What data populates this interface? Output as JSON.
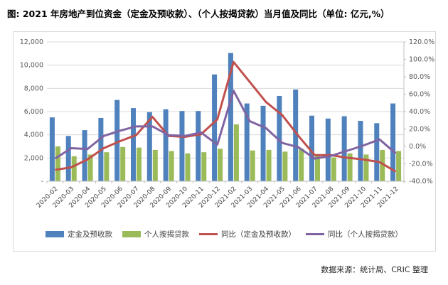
{
  "title": "图: 2021 年房地产到位资金（定金及预收款）、（个人按揭贷款）当月值及同比（单位: 亿元,%）",
  "footer": "数据来源：统计局、CRIC 整理",
  "colors": {
    "bar_blue": "#4f81bd",
    "bar_green": "#9bbb59",
    "line_red": "#c0504d",
    "line_purple": "#8064a2",
    "gridline": "#d9d9d9",
    "axis_line": "#bfbfbf",
    "tick_label": "#595959",
    "x_label": "#404040"
  },
  "chart_data": {
    "type": "bar",
    "subtype": "combo bar+line, dual axis",
    "categories": [
      "2020-02",
      "2020-03",
      "2020-04",
      "2020-05",
      "2020-06",
      "2020-07",
      "2020-08",
      "2020-09",
      "2020-10",
      "2020-11",
      "2020-12",
      "2021-02",
      "2021-03",
      "2021-04",
      "2021-05",
      "2021-06",
      "2021-07",
      "2021-08",
      "2021-09",
      "2021-10",
      "2021-11",
      "2021-12"
    ],
    "series": [
      {
        "name": "定金及预收款",
        "kind": "bar",
        "axis": "left",
        "color": "#4f81bd",
        "values": [
          5500,
          3900,
          4400,
          5450,
          7000,
          6300,
          5950,
          6200,
          6050,
          6050,
          9200,
          11050,
          6700,
          6500,
          7350,
          7900,
          5650,
          5400,
          5600,
          5200,
          5000,
          6700
        ]
      },
      {
        "name": "个人按揭贷款",
        "kind": "bar",
        "axis": "left",
        "color": "#9bbb59",
        "values": [
          3000,
          2150,
          2300,
          2500,
          2950,
          2900,
          2700,
          2600,
          2400,
          2500,
          2800,
          4900,
          2650,
          2700,
          2550,
          2800,
          2300,
          2050,
          2400,
          2300,
          2700,
          2600
        ]
      },
      {
        "name": "同比（定金及预收款）",
        "kind": "line",
        "axis": "right",
        "color": "#c0504d",
        "values": [
          -27,
          -24,
          -15,
          -2,
          6,
          13,
          34,
          12,
          11,
          14,
          31,
          97,
          74,
          51,
          36,
          12,
          -10,
          -10,
          -13,
          -15,
          -18,
          -29
        ]
      },
      {
        "name": "同比（个人按揭贷款）",
        "kind": "line",
        "axis": "right",
        "color": "#8064a2",
        "values": [
          -14,
          -2,
          -3,
          12,
          18,
          23,
          23,
          13,
          12,
          16,
          2,
          64,
          29,
          21,
          4,
          -1,
          -14,
          -11,
          -5,
          1,
          8,
          -8
        ]
      }
    ],
    "left_axis": {
      "min": 0,
      "max": 12000,
      "step": 2000,
      "tick_labels": [
        "-",
        "2,000",
        "4,000",
        "6,000",
        "8,000",
        "10,000",
        "12,000"
      ]
    },
    "right_axis": {
      "min": -40,
      "max": 120,
      "step": 20,
      "tick_labels": [
        "-40.0%",
        "-20.0%",
        "0.0%",
        "20.0%",
        "40.0%",
        "60.0%",
        "80.0%",
        "100.0%",
        "120.0%"
      ]
    },
    "grid": true,
    "legend_position": "bottom"
  }
}
